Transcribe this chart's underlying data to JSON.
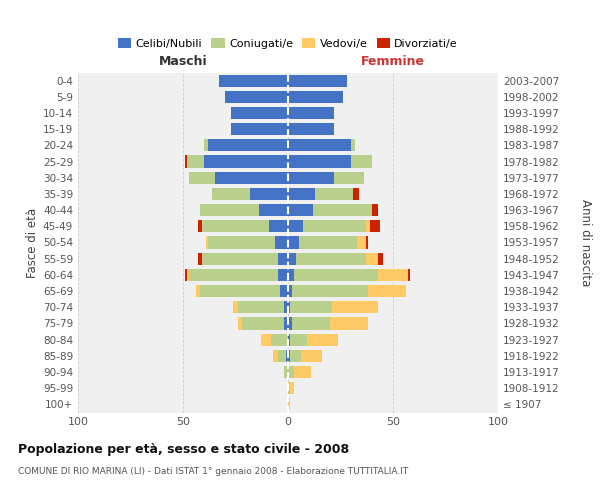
{
  "age_groups": [
    "100+",
    "95-99",
    "90-94",
    "85-89",
    "80-84",
    "75-79",
    "70-74",
    "65-69",
    "60-64",
    "55-59",
    "50-54",
    "45-49",
    "40-44",
    "35-39",
    "30-34",
    "25-29",
    "20-24",
    "15-19",
    "10-14",
    "5-9",
    "0-4"
  ],
  "birth_years": [
    "≤ 1907",
    "1908-1912",
    "1913-1917",
    "1918-1922",
    "1923-1927",
    "1928-1932",
    "1933-1937",
    "1938-1942",
    "1943-1947",
    "1948-1952",
    "1953-1957",
    "1958-1962",
    "1963-1967",
    "1968-1972",
    "1973-1977",
    "1978-1982",
    "1983-1987",
    "1988-1992",
    "1993-1997",
    "1998-2002",
    "2003-2007"
  ],
  "male_celibi": [
    0,
    0,
    0,
    1,
    0,
    2,
    2,
    4,
    5,
    5,
    6,
    9,
    14,
    18,
    35,
    40,
    38,
    27,
    27,
    30,
    33
  ],
  "male_coniugati": [
    0,
    0,
    2,
    4,
    8,
    20,
    22,
    38,
    42,
    36,
    32,
    32,
    28,
    18,
    12,
    8,
    2,
    0,
    0,
    0,
    0
  ],
  "male_vedovi": [
    0,
    0,
    0,
    2,
    5,
    2,
    2,
    2,
    1,
    0,
    1,
    0,
    0,
    0,
    0,
    0,
    0,
    0,
    0,
    0,
    0
  ],
  "male_divorziati": [
    0,
    0,
    0,
    0,
    0,
    0,
    0,
    0,
    1,
    2,
    0,
    2,
    0,
    0,
    0,
    1,
    0,
    0,
    0,
    0,
    0
  ],
  "fem_nubili": [
    0,
    0,
    0,
    1,
    1,
    2,
    1,
    2,
    3,
    4,
    5,
    7,
    12,
    13,
    22,
    30,
    30,
    22,
    22,
    26,
    28
  ],
  "fem_coniugate": [
    0,
    1,
    3,
    5,
    8,
    18,
    20,
    36,
    40,
    33,
    28,
    30,
    28,
    18,
    14,
    10,
    2,
    0,
    0,
    0,
    0
  ],
  "fem_vedove": [
    1,
    2,
    8,
    10,
    15,
    18,
    22,
    18,
    14,
    6,
    4,
    2,
    0,
    0,
    0,
    0,
    0,
    0,
    0,
    0,
    0
  ],
  "fem_divorziate": [
    0,
    0,
    0,
    0,
    0,
    0,
    0,
    0,
    1,
    2,
    1,
    5,
    3,
    3,
    0,
    0,
    0,
    0,
    0,
    0,
    0
  ],
  "color_celibi": "#4472c4",
  "color_coniugati": "#b8d08c",
  "color_vedovi": "#ffc966",
  "color_divorziati": "#cc2200",
  "title": "Popolazione per età, sesso e stato civile - 2008",
  "subtitle": "COMUNE DI RIO MARINA (LI) - Dati ISTAT 1° gennaio 2008 - Elaborazione TUTTITALIA.IT",
  "ylabel_left": "Fasce di età",
  "ylabel_right": "Anni di nascita",
  "label_maschi": "Maschi",
  "label_femmine": "Femmine",
  "legend_labels": [
    "Celibi/Nubili",
    "Coniugati/e",
    "Vedovi/e",
    "Divorziati/e"
  ],
  "xlim": 100,
  "bg_color": "#f0f0f0"
}
